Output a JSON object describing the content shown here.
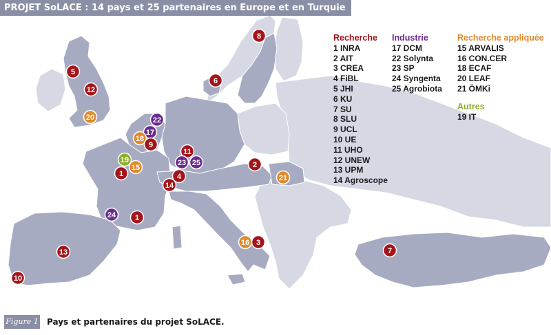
{
  "title": "PROJET SoLACE : 14 pays et 25 partenaires en Europe et en Turquie",
  "colors": {
    "recherche": "#a3151b",
    "industrie": "#6b2a8f",
    "recherche_appliquee": "#e08a2c",
    "autres": "#8fae2a",
    "land": "#a7abc2",
    "land_light": "#d6d8e3",
    "title_bg": "#8a8fa6"
  },
  "legend": {
    "recherche": {
      "heading": "Recherche",
      "items": [
        "1 INRA",
        "2 AIT",
        "3 CREA",
        "4 FiBL",
        "5 JHI",
        "6 KU",
        "7 SU",
        "8 SLU",
        "9 UCL",
        "10 UE",
        "11 UHO",
        "12 UNEW",
        "13 UPM",
        "14 Agroscope"
      ]
    },
    "industrie": {
      "heading": "Industrie",
      "items": [
        "17 DCM",
        "22 Solynta",
        "23 SP",
        "24 Syngenta",
        "25 Agrobiota"
      ]
    },
    "recherche_appliquee": {
      "heading": "Recherche appliquée",
      "items": [
        "15 ARVALIS",
        "16 CON.CER",
        "18 ECAF",
        "20 LEAF",
        "21 ÖMKi"
      ]
    },
    "autres": {
      "heading": "Autres",
      "items": [
        "19 IT"
      ]
    }
  },
  "markers": [
    {
      "label": "8",
      "category": "recherche",
      "country": "Sweden"
    },
    {
      "label": "5",
      "category": "recherche",
      "country": "United Kingdom"
    },
    {
      "label": "12",
      "category": "recherche",
      "country": "United Kingdom"
    },
    {
      "label": "20",
      "category": "recherche_appliquee",
      "country": "United Kingdom"
    },
    {
      "label": "6",
      "category": "recherche",
      "country": "Denmark"
    },
    {
      "label": "22",
      "category": "industrie",
      "country": "Netherlands"
    },
    {
      "label": "17",
      "category": "industrie",
      "country": "Netherlands"
    },
    {
      "label": "18",
      "category": "recherche_appliquee",
      "country": "Belgium"
    },
    {
      "label": "9",
      "category": "recherche",
      "country": "Belgium"
    },
    {
      "label": "11",
      "category": "recherche",
      "country": "Germany"
    },
    {
      "label": "23",
      "category": "industrie",
      "country": "Germany"
    },
    {
      "label": "25",
      "category": "industrie",
      "country": "Germany"
    },
    {
      "label": "19",
      "category": "autres",
      "country": "France"
    },
    {
      "label": "15",
      "category": "recherche_appliquee",
      "country": "France"
    },
    {
      "label": "1",
      "category": "recherche",
      "country": "France"
    },
    {
      "label": "4",
      "category": "recherche",
      "country": "Switzerland"
    },
    {
      "label": "14",
      "category": "recherche",
      "country": "Switzerland"
    },
    {
      "label": "2",
      "category": "recherche",
      "country": "Austria"
    },
    {
      "label": "21",
      "category": "recherche_appliquee",
      "country": "Hungary"
    },
    {
      "label": "24",
      "category": "industrie",
      "country": "France"
    },
    {
      "label": "1",
      "category": "recherche",
      "country": "France"
    },
    {
      "label": "13",
      "category": "recherche",
      "country": "Spain"
    },
    {
      "label": "10",
      "category": "recherche",
      "country": "Portugal"
    },
    {
      "label": "16",
      "category": "recherche_appliquee",
      "country": "Italy"
    },
    {
      "label": "3",
      "category": "recherche",
      "country": "Italy"
    },
    {
      "label": "7",
      "category": "recherche",
      "country": "Turkey"
    }
  ],
  "caption": {
    "figure_label": "Figure 1",
    "text": "Pays et partenaires du projet SoLACE."
  }
}
